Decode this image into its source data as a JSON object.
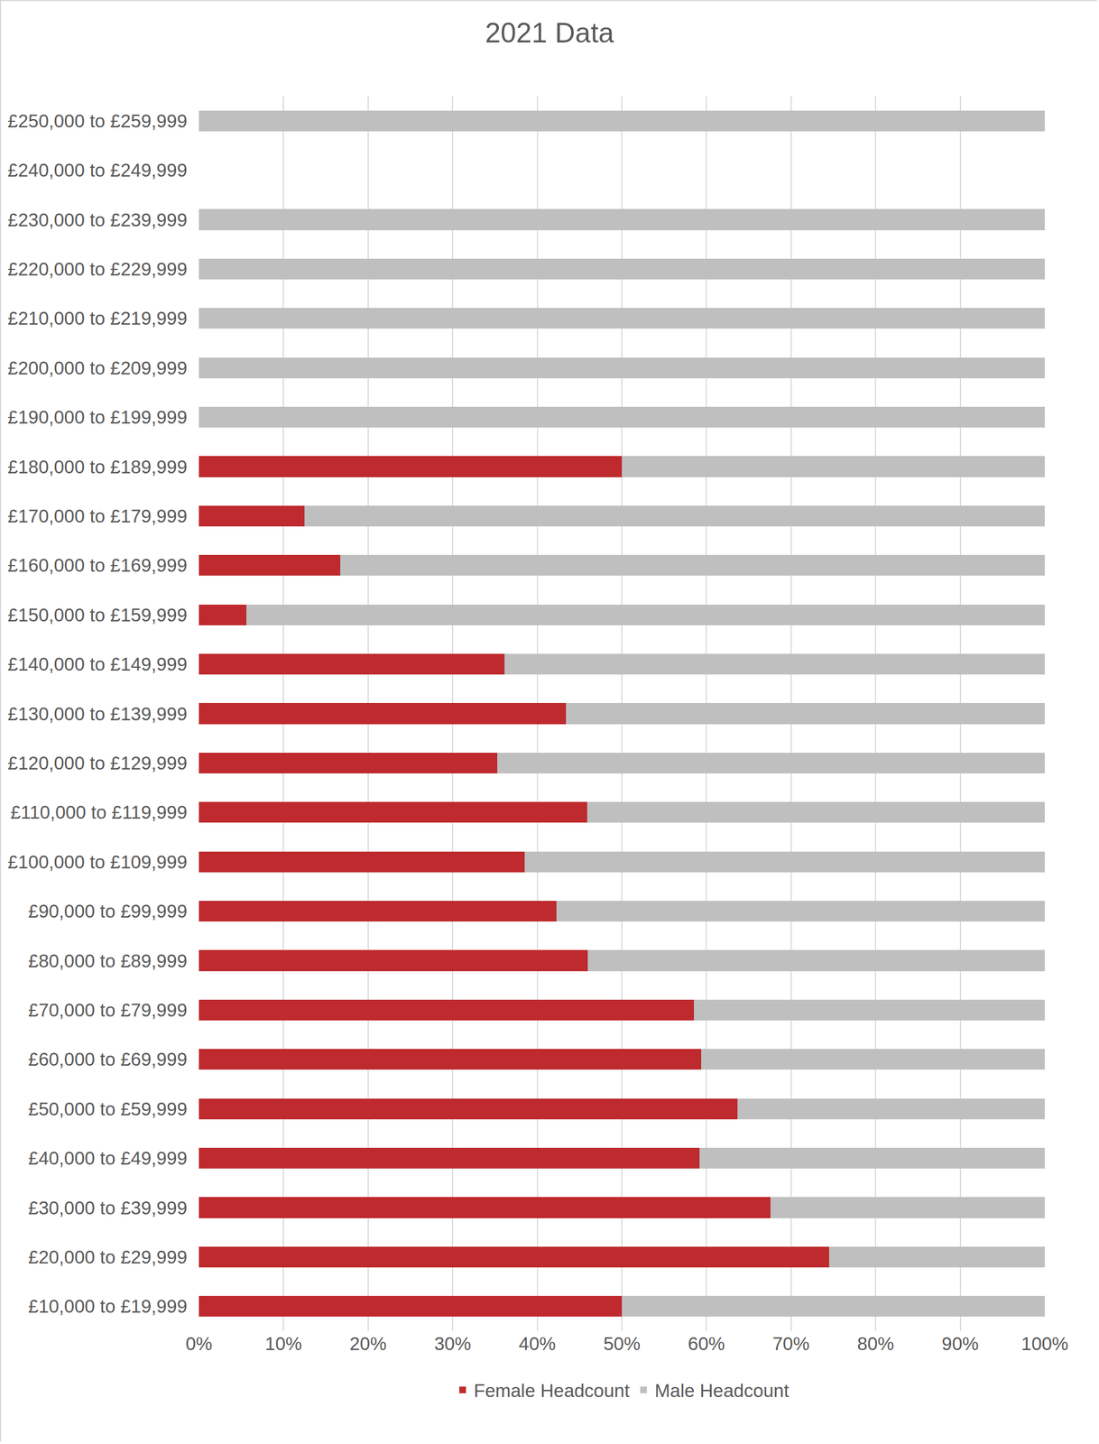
{
  "chart_data": {
    "type": "bar",
    "title": "2021 Data",
    "orientation": "horizontal",
    "stacked": true,
    "grid": true,
    "legend": "bottom",
    "categories": [
      "£10,000 to £19,999",
      "£20,000 to £29,999",
      "£30,000 to £39,999",
      "£40,000 to £49,999",
      "£50,000 to £59,999",
      "£60,000 to £69,999",
      "£70,000 to £79,999",
      "£80,000 to £89,999",
      "£90,000 to £99,999",
      "£100,000 to £109,999",
      "£110,000 to £119,999",
      "£120,000 to £129,999",
      "£130,000 to £139,999",
      "£140,000 to £149,999",
      "£150,000 to £159,999",
      "£160,000 to £169,999",
      "£170,000 to £179,999",
      "£180,000 to £189,999",
      "£190,000 to £199,999",
      "£200,000 to £209,999",
      "£210,000 to £219,999",
      "£220,000 to £229,999",
      "£230,000 to £239,999",
      "£240,000 to £249,999",
      "£250,000 to £259,999"
    ],
    "series": [
      {
        "name": "Female Headcount",
        "color": "#be2a2e",
        "values": [
          50,
          74.5,
          67.6,
          59.2,
          63.7,
          59.4,
          58.5,
          46,
          42.3,
          38.5,
          45.9,
          35.3,
          43.4,
          36.1,
          5.6,
          16.7,
          12.5,
          50,
          0,
          0,
          0,
          0,
          0,
          null,
          0
        ]
      },
      {
        "name": "Male Headcount",
        "color": "#bfbfbf",
        "values": [
          50,
          25.5,
          32.4,
          40.8,
          36.3,
          40.6,
          41.5,
          54,
          57.7,
          61.5,
          54.1,
          64.7,
          56.6,
          63.9,
          94.4,
          83.3,
          87.5,
          50,
          100,
          100,
          100,
          100,
          100,
          null,
          100
        ]
      }
    ],
    "xlim": [
      0,
      100
    ],
    "xticks": [
      {
        "value": 0,
        "label": "0%"
      },
      {
        "value": 10,
        "label": "10%"
      },
      {
        "value": 20,
        "label": "20%"
      },
      {
        "value": 30,
        "label": "30%"
      },
      {
        "value": 40,
        "label": "40%"
      },
      {
        "value": 50,
        "label": "50%"
      },
      {
        "value": 60,
        "label": "60%"
      },
      {
        "value": 70,
        "label": "70%"
      },
      {
        "value": 80,
        "label": "80%"
      },
      {
        "value": 90,
        "label": "90%"
      },
      {
        "value": 100,
        "label": "100%"
      }
    ]
  }
}
